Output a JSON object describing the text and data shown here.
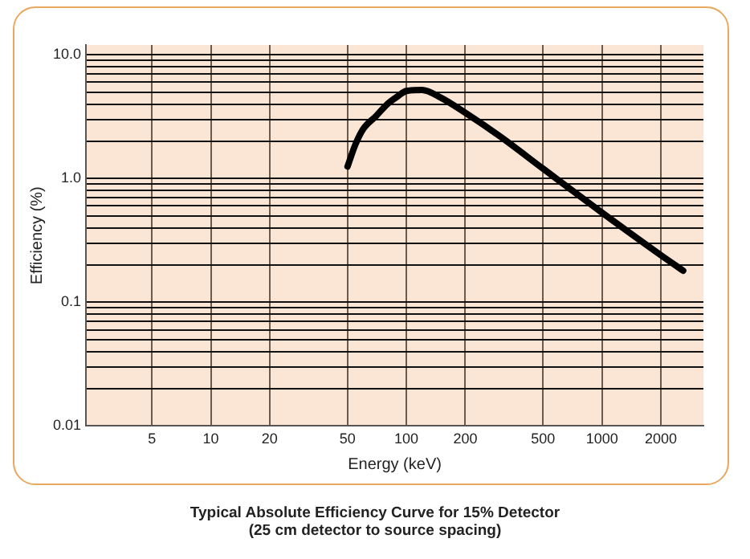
{
  "chart_data": {
    "type": "line",
    "title": "Typical Absolute Efficiency Curve for 15% Detector",
    "subtitle": "(25 cm detector to source spacing)",
    "xlabel": "Energy (keV)",
    "ylabel": "Efficiency (%)",
    "log": "xy",
    "grid": true,
    "legend": false,
    "marker": "none",
    "line_style": "solid",
    "xlim": [
      2.3,
      3300
    ],
    "ylim": [
      0.01,
      12
    ],
    "xticks": [
      5,
      10,
      20,
      50,
      100,
      200,
      500,
      1000,
      2000
    ],
    "yticks": [
      0.01,
      {
        "value": 0.02,
        "label": null
      },
      {
        "value": 0.03,
        "label": null
      },
      {
        "value": 0.04,
        "label": null
      },
      {
        "value": 0.05,
        "label": null
      },
      {
        "value": 0.06,
        "label": null
      },
      {
        "value": 0.07,
        "label": null
      },
      {
        "value": 0.08,
        "label": null
      },
      {
        "value": 0.09,
        "label": null
      },
      0.1,
      {
        "value": 0.2,
        "label": null
      },
      {
        "value": 0.3,
        "label": null
      },
      {
        "value": 0.4,
        "label": null
      },
      {
        "value": 0.5,
        "label": null
      },
      {
        "value": 0.6,
        "label": null
      },
      {
        "value": 0.7,
        "label": null
      },
      {
        "value": 0.8,
        "label": null
      },
      {
        "value": 0.9,
        "label": null
      },
      {
        "value": 1,
        "label": "1.0"
      },
      {
        "value": 2,
        "label": null
      },
      {
        "value": 3,
        "label": null
      },
      {
        "value": 4,
        "label": null
      },
      {
        "value": 5,
        "label": null
      },
      {
        "value": 6,
        "label": null
      },
      {
        "value": 7,
        "label": null
      },
      {
        "value": 8,
        "label": null
      },
      {
        "value": 9,
        "label": null
      },
      {
        "value": 10,
        "label": "10.0"
      }
    ],
    "x": [
      50,
      55,
      60,
      70,
      80,
      90,
      100,
      120,
      150,
      200,
      300,
      500,
      1000,
      2000,
      2600
    ],
    "series": [
      {
        "color": "#000000",
        "values": [
          1.25,
          1.9,
          2.5,
          3.2,
          4.0,
          4.6,
          5.1,
          5.2,
          4.5,
          3.4,
          2.2,
          1.2,
          0.53,
          0.24,
          0.18
        ]
      }
    ]
  }
}
